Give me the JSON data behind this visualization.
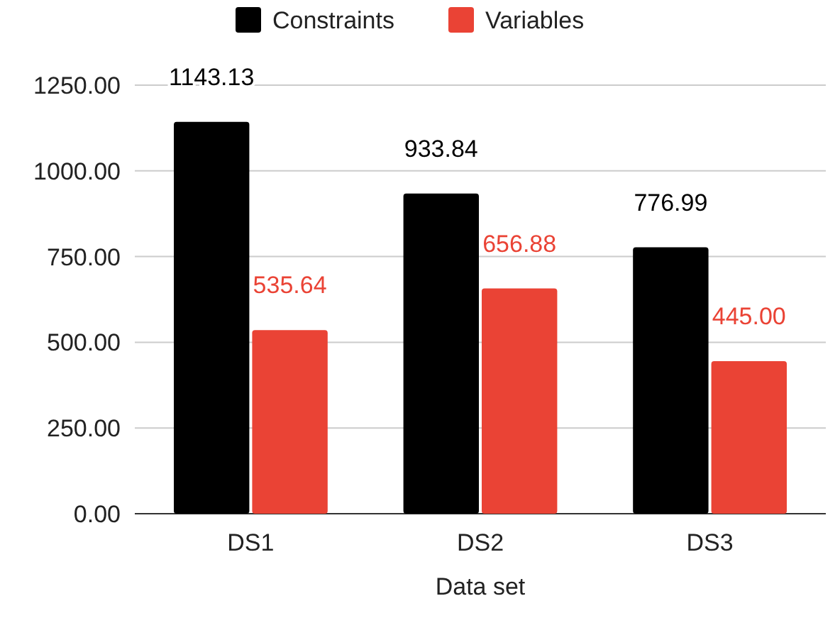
{
  "chart_data": {
    "type": "bar",
    "xlabel": "Data set",
    "categories": [
      "DS1",
      "DS2",
      "DS3"
    ],
    "series": [
      {
        "name": "Constraints",
        "color": "#000000",
        "values": [
          1143.13,
          933.84,
          776.99
        ],
        "value_labels": [
          "1143.13",
          "933.84",
          "776.99"
        ]
      },
      {
        "name": "Variables",
        "color": "#ea4335",
        "values": [
          535.64,
          656.88,
          445.0
        ],
        "value_labels": [
          "535.64",
          "656.88",
          "445.00"
        ]
      }
    ],
    "ylim": [
      0,
      1250
    ],
    "yticks": [
      {
        "value": 0,
        "label": "0.00"
      },
      {
        "value": 250,
        "label": "250.00"
      },
      {
        "value": 500,
        "label": "500.00"
      },
      {
        "value": 750,
        "label": "750.00"
      },
      {
        "value": 1000,
        "label": "1000.00"
      },
      {
        "value": 1250,
        "label": "1250.00"
      }
    ],
    "grid": "y",
    "legend": "top"
  }
}
